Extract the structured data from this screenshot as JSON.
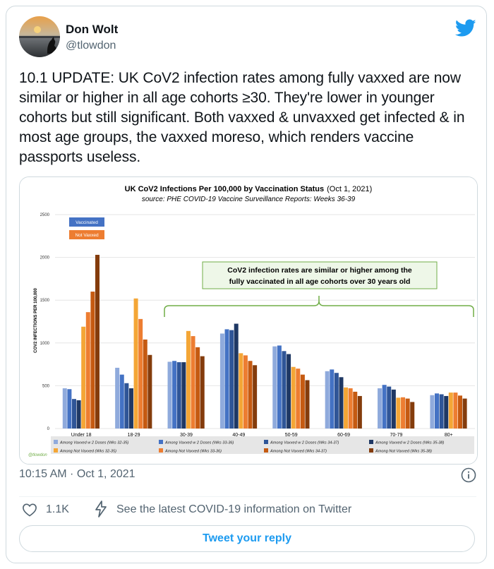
{
  "author": {
    "name": "Don Wolt",
    "handle": "@tlowdon"
  },
  "tweet": {
    "text": "10.1 UPDATE: UK CoV2 infection rates among fully vaxxed are now similar or higher in all age cohorts ≥30. They're lower in younger cohorts but still significant. Both vaxxed & unvaxxed get infected & in most age groups, the vaxxed moreso, which renders vaccine passports useless.",
    "timestamp": "10:15 AM · Oct 1, 2021",
    "likes": "1.1K",
    "covid_link": "See the latest COVID-19 information on Twitter",
    "reply_label": "Tweet your reply"
  },
  "colors": {
    "twitter_blue": "#1d9bf0",
    "vax": [
      "#8faadc",
      "#4472c4",
      "#2f5597",
      "#1f3864"
    ],
    "unvax": [
      "#f4a636",
      "#ed7d31",
      "#c55a11",
      "#843c0c"
    ]
  },
  "chart_data": {
    "type": "bar",
    "title_bold": "UK CoV2 Infections Per 100,000 by Vaccination Status",
    "title_suffix": "(Oct 1, 2021)",
    "subtitle": "source: PHE COVID-19 Vaccine Surveillance Reports: Weeks 36-39",
    "ylabel": "COV2 INFECTIONS PER 100,000",
    "ylim": [
      0,
      2500
    ],
    "yticks": [
      0,
      500,
      1000,
      1500,
      2000,
      2500
    ],
    "categories": [
      "Under 18",
      "18-29",
      "30-39",
      "40-49",
      "50-59",
      "60-69",
      "70-79",
      "80+"
    ],
    "inset_legend": [
      "Vaccinated",
      "Not Vaxxed"
    ],
    "annotation": [
      "CoV2 infection rates are similar or higher among the",
      "fully vaccinated in all age cohorts over 30 years old"
    ],
    "credit": "@tlowdon",
    "series": [
      {
        "name": "Among Vaxxed w 2 Doses (Wks 32-35)",
        "group": "vax",
        "values": [
          470,
          710,
          780,
          1110,
          960,
          670,
          470,
          390
        ]
      },
      {
        "name": "Among Vaxxed w 2 Doses (Wks 33-36)",
        "group": "vax",
        "values": [
          460,
          630,
          790,
          1160,
          970,
          690,
          510,
          410
        ]
      },
      {
        "name": "Among Vaxxed w 2 Doses (Wks 34-37)",
        "group": "vax",
        "values": [
          345,
          530,
          775,
          1150,
          905,
          650,
          490,
          400
        ]
      },
      {
        "name": "Among Vaxxed w 2 Doses (Wks 35-38)",
        "group": "vax",
        "values": [
          330,
          470,
          775,
          1225,
          870,
          600,
          455,
          380
        ]
      },
      {
        "name": "Among Not Vaxxed (Wks 32-35)",
        "group": "unvax",
        "values": [
          1190,
          1520,
          1140,
          880,
          720,
          480,
          360,
          420
        ]
      },
      {
        "name": "Among Not Vaxxed (Wks 33-36)",
        "group": "unvax",
        "values": [
          1360,
          1280,
          1080,
          855,
          700,
          470,
          365,
          420
        ]
      },
      {
        "name": "Among Not Vaxxed (Wks 34-37)",
        "group": "unvax",
        "values": [
          1600,
          1040,
          950,
          790,
          630,
          430,
          350,
          385
        ]
      },
      {
        "name": "Among Not Vaxxed (Wks 35-38)",
        "group": "unvax",
        "values": [
          2030,
          860,
          845,
          740,
          565,
          380,
          310,
          350
        ]
      }
    ]
  }
}
